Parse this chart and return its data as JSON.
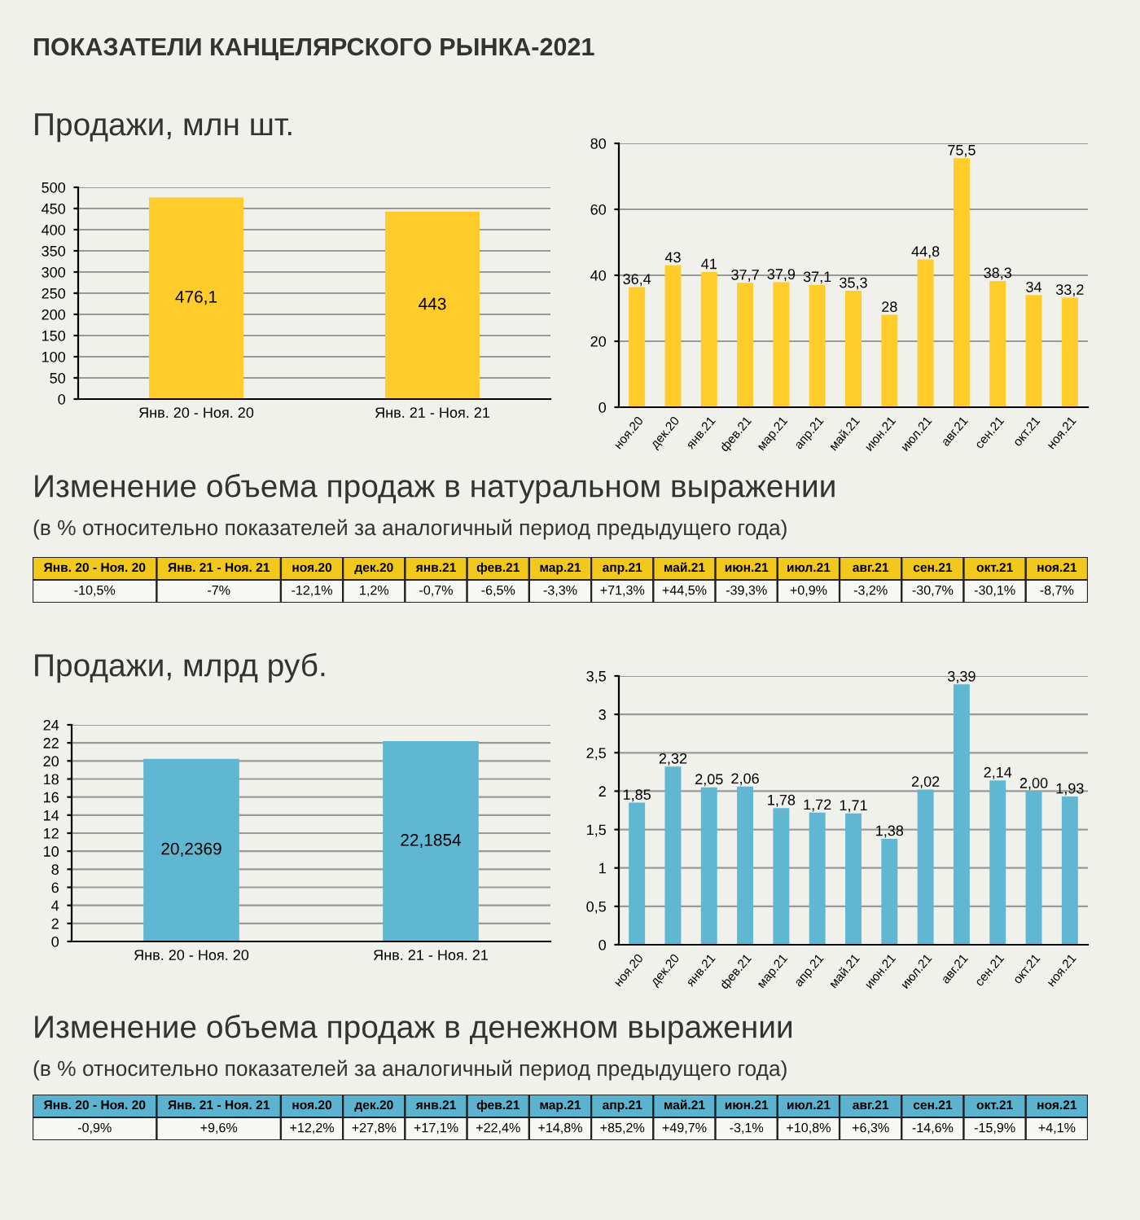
{
  "chart_data": [
    {
      "type": "bar",
      "title": "ПОКАЗАТЕЛИ КАНЦЕЛЯРСКОГО РЫНКА-2021",
      "subtitle": "Продажи, млн шт.",
      "categories": [
        "Янв. 20 - Ноя. 20",
        "Янв. 21 - Ноя. 21"
      ],
      "values": [
        476.1,
        443
      ],
      "value_labels": [
        "476,1",
        "443"
      ],
      "color": "#ffcc29",
      "ylim": [
        0,
        500
      ],
      "yticks": [
        0,
        50,
        100,
        150,
        200,
        250,
        300,
        350,
        400,
        450,
        500
      ],
      "grid": "y"
    },
    {
      "type": "bar",
      "categories": [
        "ноя.20",
        "дек.20",
        "янв.21",
        "фев.21",
        "мар.21",
        "апр.21",
        "май.21",
        "июн.21",
        "июл.21",
        "авг.21",
        "сен.21",
        "окт.21",
        "ноя.21"
      ],
      "values": [
        36.4,
        43,
        41,
        37.7,
        37.9,
        37.1,
        35.3,
        28,
        44.8,
        75.5,
        38.3,
        34,
        33.2
      ],
      "value_labels": [
        "36,4",
        "43",
        "41",
        "37,7",
        "37,9",
        "37,1",
        "35,3",
        "28",
        "44,8",
        "75,5",
        "38,3",
        "34",
        "33,2"
      ],
      "color": "#ffcc29",
      "ylim": [
        0,
        80
      ],
      "yticks": [
        0,
        20,
        40,
        60,
        80
      ],
      "grid": "y"
    },
    {
      "type": "other",
      "title": "Изменение объема продаж в натуральном выражении",
      "subtitle": "(в % относительно показателей за аналогичный период предыдущего года)",
      "categories": [
        "Янв. 20 - Ноя. 20",
        "Янв. 21 - Ноя. 21",
        "ноя.20",
        "дек.20",
        "янв.21",
        "фев.21",
        "мар.21",
        "апр.21",
        "май.21",
        "июн.21",
        "июл.21",
        "авг.21",
        "сен.21",
        "окт.21",
        "ноя.21"
      ],
      "value_labels": [
        "-10,5%",
        "-7%",
        "-12,1%",
        "1,2%",
        "-0,7%",
        "-6,5%",
        "-3,3%",
        "+71,3%",
        "+44,5%",
        "-39,3%",
        "+0,9%",
        "-3,2%",
        "-30,7%",
        "-30,1%",
        "-8,7%"
      ],
      "color": "#f2c81c"
    },
    {
      "type": "bar",
      "title": "Продажи, млрд руб.",
      "categories": [
        "Янв. 20 - Ноя. 20",
        "Янв. 21 - Ноя. 21"
      ],
      "values": [
        20.2369,
        22.1854
      ],
      "value_labels": [
        "20,2369",
        "22,1854"
      ],
      "color": "#60b7d2",
      "ylim": [
        0,
        24
      ],
      "yticks": [
        0,
        2,
        4,
        6,
        8,
        10,
        12,
        14,
        16,
        18,
        20,
        22,
        24
      ],
      "grid": "y"
    },
    {
      "type": "bar",
      "categories": [
        "ноя.20",
        "дек.20",
        "янв.21",
        "фев.21",
        "мар.21",
        "апр.21",
        "май.21",
        "июн.21",
        "июл.21",
        "авг.21",
        "сен.21",
        "окт.21",
        "ноя.21"
      ],
      "values": [
        1.85,
        2.32,
        2.05,
        2.06,
        1.78,
        1.72,
        1.71,
        1.38,
        2.02,
        3.39,
        2.14,
        2.0,
        1.93
      ],
      "value_labels": [
        "1,85",
        "2,32",
        "2,05",
        "2,06",
        "1,78",
        "1,72",
        "1,71",
        "1,38",
        "2,02",
        "3,39",
        "2,14",
        "2,00",
        "1,93"
      ],
      "color": "#60b7d2",
      "ylim": [
        0,
        3.5
      ],
      "yticks": [
        0,
        {
          "value": 0.5,
          "label": "0,5"
        },
        1,
        {
          "value": 1.5,
          "label": "1,5"
        },
        2,
        {
          "value": 2.5,
          "label": "2,5"
        },
        3,
        {
          "value": 3.5,
          "label": "3,5"
        }
      ],
      "grid": "y"
    },
    {
      "type": "other",
      "title": "Изменение объема продаж в денежном выражении",
      "subtitle": "(в % относительно показателей за аналогичный период предыдущего года)",
      "categories": [
        "Янв. 20 - Ноя. 20",
        "Янв. 21 - Ноя. 21",
        "ноя.20",
        "дек.20",
        "янв.21",
        "фев.21",
        "мар.21",
        "апр.21",
        "май.21",
        "июн.21",
        "июл.21",
        "авг.21",
        "сен.21",
        "окт.21",
        "ноя.21"
      ],
      "value_labels": [
        "-0,9%",
        "+9,6%",
        "+12,2%",
        "+27,8%",
        "+17,1%",
        "+22,4%",
        "+14,8%",
        "+85,2%",
        "+49,7%",
        "-3,1%",
        "+10,8%",
        "+6,3%",
        "-14,6%",
        "-15,9%",
        "+4,1%"
      ],
      "color": "#5bb3d0"
    }
  ]
}
